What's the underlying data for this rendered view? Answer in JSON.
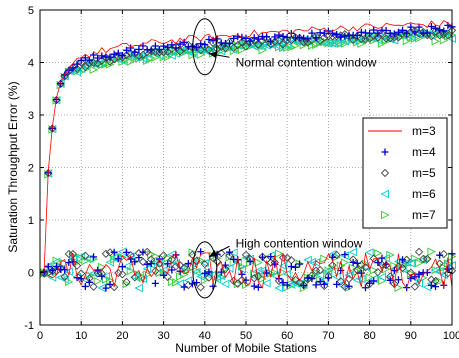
{
  "chart_data": {
    "type": "scatter",
    "xlabel": "Number of Mobile Stations",
    "ylabel": "Saturation Throughput Error (%)",
    "xlim": [
      0,
      100
    ],
    "ylim": [
      -1,
      5
    ],
    "xticks": [
      0,
      10,
      20,
      30,
      40,
      50,
      60,
      70,
      80,
      90,
      100
    ],
    "yticks": [
      -1,
      0,
      1,
      2,
      3,
      4,
      5
    ],
    "grid": "dotted",
    "legend_position": "right",
    "series": [
      {
        "name": "m=3",
        "color": "#ff0000",
        "marker": "line"
      },
      {
        "name": "m=4",
        "color": "#0000cc",
        "marker": "plus"
      },
      {
        "name": "m=5",
        "color": "#444444",
        "marker": "diamond"
      },
      {
        "name": "m=6",
        "color": "#00cccc",
        "marker": "triangle-left"
      },
      {
        "name": "m=7",
        "color": "#33cc33",
        "marker": "triangle-right"
      }
    ],
    "groups": [
      {
        "name": "normal",
        "x_range": [
          1,
          100
        ],
        "curve": [
          [
            1,
            0.0
          ],
          [
            2,
            1.9
          ],
          [
            3,
            2.75
          ],
          [
            4,
            3.3
          ],
          [
            5,
            3.6
          ],
          [
            6,
            3.75
          ],
          [
            7,
            3.85
          ],
          [
            8,
            3.92
          ],
          [
            10,
            4.0
          ],
          [
            15,
            4.1
          ],
          [
            20,
            4.18
          ],
          [
            30,
            4.28
          ],
          [
            40,
            4.35
          ],
          [
            50,
            4.42
          ],
          [
            60,
            4.47
          ],
          [
            70,
            4.52
          ],
          [
            80,
            4.56
          ],
          [
            90,
            4.6
          ],
          [
            100,
            4.62
          ]
        ],
        "offsets": {
          "m=3": 0.12,
          "m=4": 0.02,
          "m=5": -0.05,
          "m=6": -0.1,
          "m=7": -0.14
        }
      },
      {
        "name": "high",
        "x_range": [
          1,
          100
        ],
        "base": 0.05,
        "spread": 0.35
      }
    ],
    "annotations": [
      {
        "text": "Normal contention window",
        "arrow_to": [
          41,
          4.17
        ],
        "text_at": [
          47,
          4.0
        ],
        "ellipse_center": [
          40,
          4.3
        ]
      },
      {
        "text": "High contention window",
        "arrow_to": [
          41,
          0.3
        ],
        "text_at": [
          47,
          0.55
        ],
        "ellipse_center": [
          40,
          0.05
        ]
      }
    ]
  }
}
